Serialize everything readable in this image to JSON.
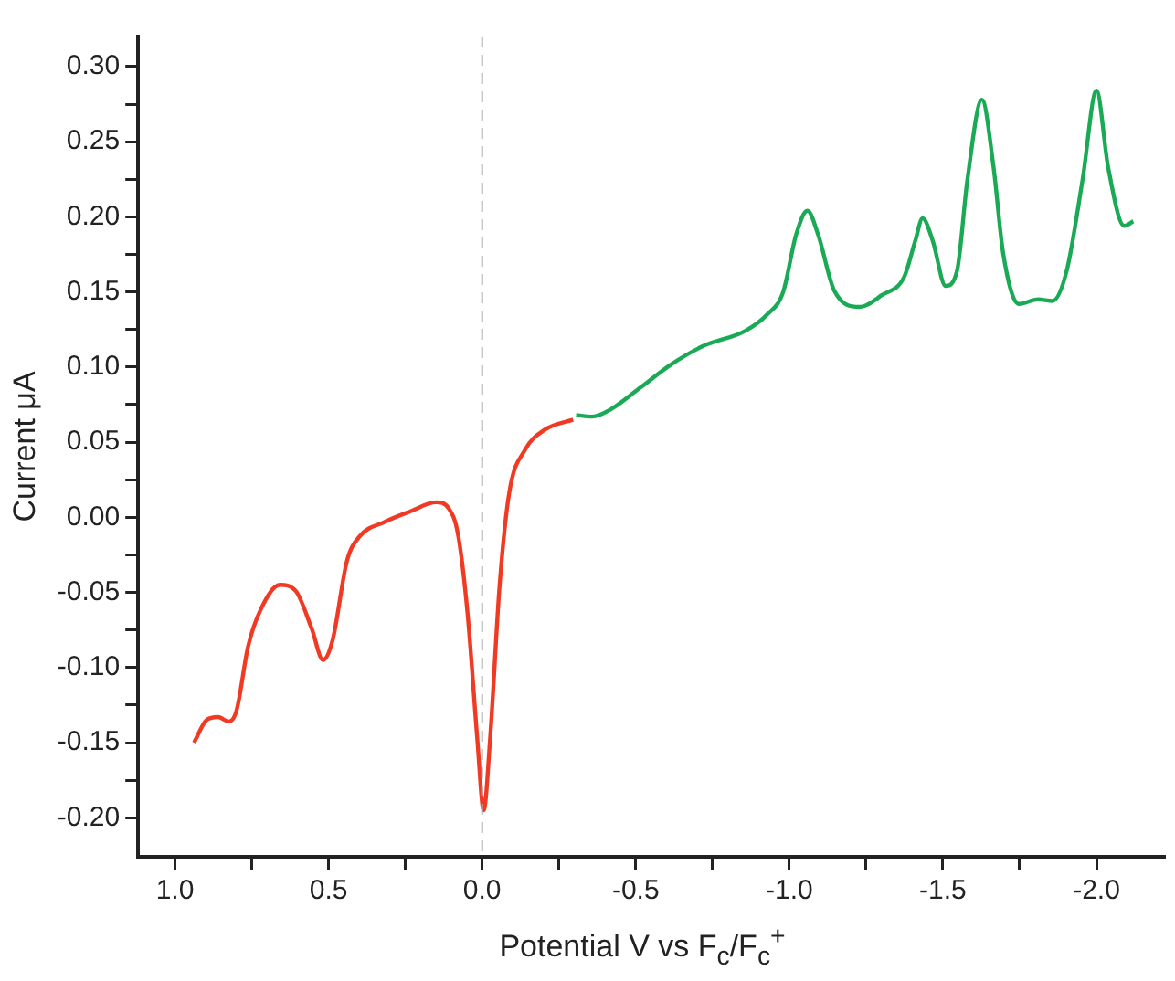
{
  "chart_data": {
    "type": "line",
    "xlabel": "Potential V vs F$_{c}$/F$_{c}$$^{+}$",
    "ylabel": "Current μA",
    "xlim": [
      1.12,
      -2.22
    ],
    "ylim": [
      -0.226,
      0.32
    ],
    "xticks": [
      {
        "value": 1,
        "label": "1.0"
      },
      {
        "value": 0.75,
        "label": null
      },
      {
        "value": 0.5,
        "label": "0.5"
      },
      {
        "value": 0.25,
        "label": null
      },
      {
        "value": 0,
        "label": "0.0"
      },
      {
        "value": -0.25,
        "label": null
      },
      {
        "value": -0.5,
        "label": "-0.5"
      },
      {
        "value": -0.75,
        "label": null
      },
      {
        "value": -1,
        "label": "-1.0"
      },
      {
        "value": -1.25,
        "label": null
      },
      {
        "value": -1.5,
        "label": "-1.5"
      },
      {
        "value": -1.75,
        "label": null
      },
      {
        "value": -2,
        "label": "-2.0"
      }
    ],
    "yticks": [
      {
        "value": -0.2,
        "label": "-0.20"
      },
      {
        "value": -0.175,
        "label": null
      },
      {
        "value": -0.15,
        "label": "-0.15"
      },
      {
        "value": -0.125,
        "label": null
      },
      {
        "value": -0.1,
        "label": "-0.10"
      },
      {
        "value": -0.075,
        "label": null
      },
      {
        "value": -0.05,
        "label": "-0.05"
      },
      {
        "value": -0.025,
        "label": null
      },
      {
        "value": 0,
        "label": "0.00"
      },
      {
        "value": 0.025,
        "label": null
      },
      {
        "value": 0.05,
        "label": "0.05"
      },
      {
        "value": 0.075,
        "label": null
      },
      {
        "value": 0.1,
        "label": "0.10"
      },
      {
        "value": 0.125,
        "label": null
      },
      {
        "value": 0.15,
        "label": "0.15"
      },
      {
        "value": 0.175,
        "label": null
      },
      {
        "value": 0.2,
        "label": "0.20"
      },
      {
        "value": 0.225,
        "label": null
      },
      {
        "value": 0.25,
        "label": "0.25"
      },
      {
        "value": 0.275,
        "label": null
      },
      {
        "value": 0.3,
        "label": "0.30"
      }
    ],
    "grid": false,
    "legend": false,
    "marker": "none",
    "line_style": "solid",
    "ref_lines": [
      {
        "axis": "x",
        "value": 0,
        "color": "#b0b0b0",
        "line_style": "dashed"
      }
    ],
    "series": [
      {
        "color": "#f03a24",
        "x": [
          0.938,
          0.897,
          0.86,
          0.825,
          0.8,
          0.762,
          0.72,
          0.658,
          0.607,
          0.555,
          0.518,
          0.487,
          0.44,
          0.4,
          0.316,
          0.233,
          0.15,
          0.109,
          0.078,
          0.047,
          0.016,
          -0.005,
          -0.026,
          -0.057,
          -0.088,
          -0.14,
          -0.202,
          -0.296
        ],
        "values": [
          -0.15,
          -0.135,
          -0.133,
          -0.136,
          -0.129,
          -0.086,
          -0.061,
          -0.045,
          -0.049,
          -0.074,
          -0.095,
          -0.082,
          -0.029,
          -0.013,
          -0.003,
          0.004,
          0.01,
          0.006,
          -0.012,
          -0.065,
          -0.147,
          -0.195,
          -0.147,
          -0.045,
          0.016,
          0.045,
          0.058,
          0.065
        ]
      },
      {
        "color": "#1aaa55",
        "x": [
          -0.306,
          -0.358,
          -0.42,
          -0.513,
          -0.617,
          -0.72,
          -0.856,
          -0.928,
          -0.98,
          -1.022,
          -1.059,
          -1.094,
          -1.146,
          -1.229,
          -1.302,
          -1.374,
          -1.41,
          -1.434,
          -1.467,
          -1.509,
          -1.546,
          -1.58,
          -1.627,
          -1.665,
          -1.696,
          -1.747,
          -1.81,
          -1.857,
          -1.903,
          -1.955,
          -2,
          -2.038,
          -2.09,
          -2.12
        ],
        "values": [
          0.068,
          0.067,
          0.072,
          0.086,
          0.102,
          0.114,
          0.124,
          0.135,
          0.15,
          0.188,
          0.204,
          0.188,
          0.151,
          0.14,
          0.148,
          0.16,
          0.184,
          0.199,
          0.184,
          0.154,
          0.164,
          0.225,
          0.278,
          0.233,
          0.176,
          0.142,
          0.145,
          0.144,
          0.164,
          0.225,
          0.284,
          0.233,
          0.194,
          0.197
        ]
      }
    ]
  }
}
